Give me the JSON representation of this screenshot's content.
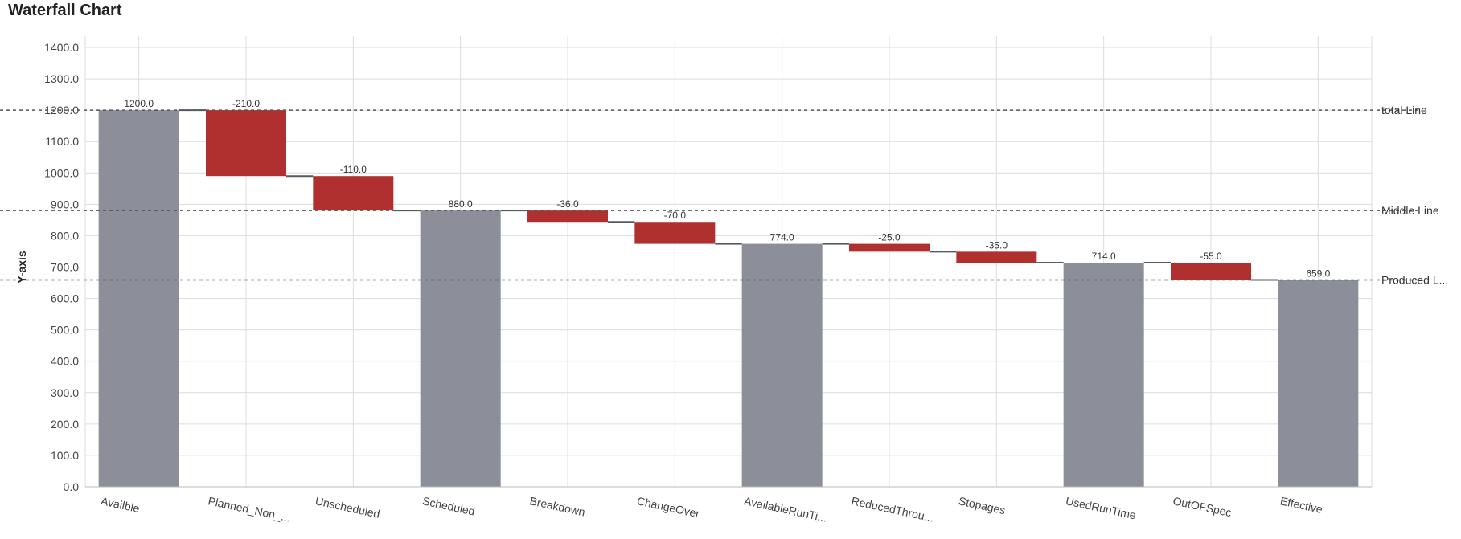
{
  "chart_data": {
    "type": "bar",
    "subtype": "waterfall",
    "title": "Waterfall Chart",
    "xlabel": "",
    "ylabel": "Y-axis",
    "ylim": [
      0,
      1400
    ],
    "yticks": [
      0,
      100,
      200,
      300,
      400,
      500,
      600,
      700,
      800,
      900,
      1000,
      1100,
      1200,
      1300,
      1400
    ],
    "ytick_labels": [
      "0.0",
      "100.0",
      "200.0",
      "300.0",
      "400.0",
      "500.0",
      "600.0",
      "700.0",
      "800.0",
      "900.0",
      "1000.0",
      "1100.0",
      "1200.0",
      "1300.0",
      "1400.0"
    ],
    "grid": true,
    "categories": [
      "Availble",
      "Planned_Non_...",
      "Unscheduled",
      "Scheduled",
      "Breakdown",
      "ChangeOver",
      "AvailableRunTi...",
      "ReducedThrou...",
      "Stopages",
      "UsedRunTime",
      "OutOFSpec",
      "Effective"
    ],
    "bars": [
      {
        "kind": "total",
        "start": 0,
        "end": 1200,
        "label": "1200.0"
      },
      {
        "kind": "decrease",
        "start": 1200,
        "end": 990,
        "label": "-210.0"
      },
      {
        "kind": "decrease",
        "start": 990,
        "end": 880,
        "label": "-110.0"
      },
      {
        "kind": "total",
        "start": 0,
        "end": 880,
        "label": "880.0"
      },
      {
        "kind": "decrease",
        "start": 880,
        "end": 844,
        "label": "-36.0"
      },
      {
        "kind": "decrease",
        "start": 844,
        "end": 774,
        "label": "-70.0"
      },
      {
        "kind": "total",
        "start": 0,
        "end": 774,
        "label": "774.0"
      },
      {
        "kind": "decrease",
        "start": 774,
        "end": 749,
        "label": "-25.0"
      },
      {
        "kind": "decrease",
        "start": 749,
        "end": 714,
        "label": "-35.0"
      },
      {
        "kind": "total",
        "start": 0,
        "end": 714,
        "label": "714.0"
      },
      {
        "kind": "decrease",
        "start": 714,
        "end": 659,
        "label": "-55.0"
      },
      {
        "kind": "total",
        "start": 0,
        "end": 659,
        "label": "659.0"
      }
    ],
    "reference_lines": [
      {
        "name": "total Line",
        "value": 1200
      },
      {
        "name": "Middle Line",
        "value": 880
      },
      {
        "name": "Produced L...",
        "value": 659
      }
    ],
    "colors": {
      "total": "#8c8e99",
      "decrease": "#b03030",
      "connector": "#555a66",
      "grid": "#dcdcdc",
      "reference": "#555555"
    }
  }
}
